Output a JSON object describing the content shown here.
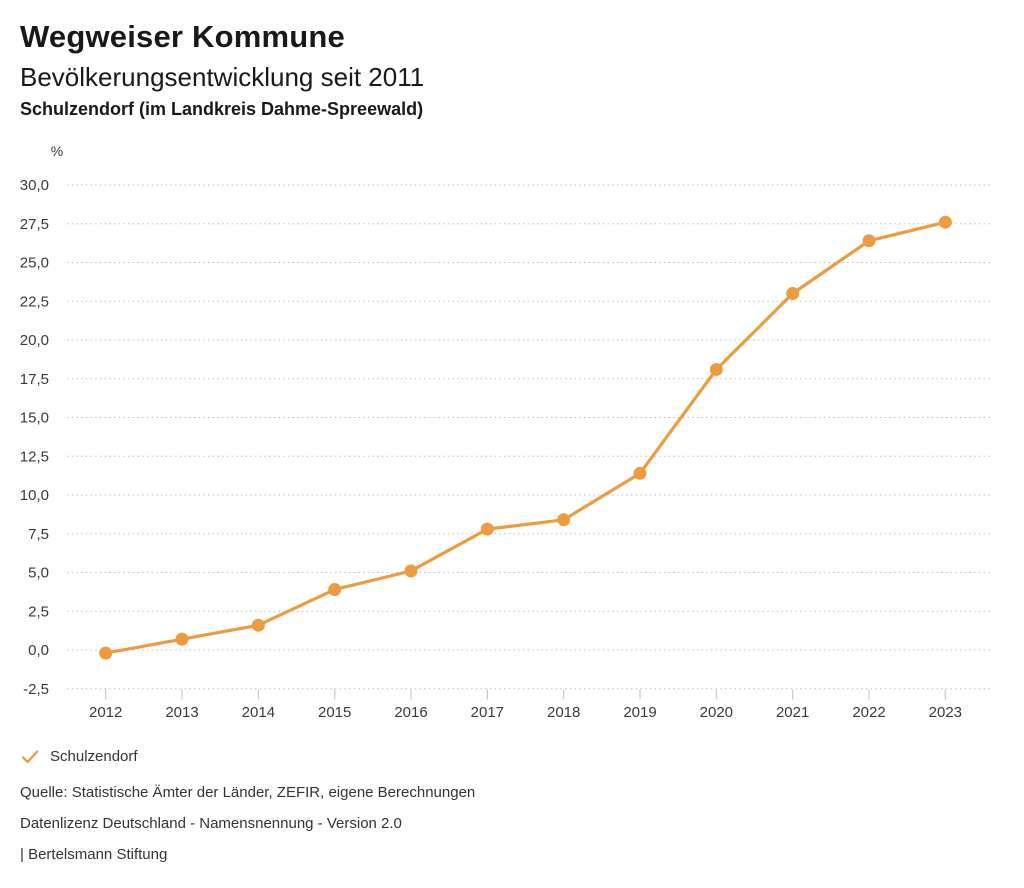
{
  "page": {
    "title": "Wegweiser Kommune",
    "subtitle": "Bevölkerungsentwicklung seit 2011",
    "region": "Schulzendorf (im Landkreis Dahme-Spreewald)"
  },
  "chart_data": {
    "type": "line",
    "title": "Bevölkerungsentwicklung seit 2011",
    "unit_label": "%",
    "categories": [
      "2012",
      "2013",
      "2014",
      "2015",
      "2016",
      "2017",
      "2018",
      "2019",
      "2020",
      "2021",
      "2022",
      "2023"
    ],
    "series": [
      {
        "name": "Schulzendorf",
        "color": "#ED9B40",
        "values": [
          -0.2,
          0.7,
          1.6,
          3.9,
          5.1,
          7.8,
          8.4,
          11.4,
          18.1,
          23.0,
          26.4,
          27.6
        ]
      }
    ],
    "ylim": [
      -2.5,
      30.0
    ],
    "y_tick_step": 2.5,
    "y_tick_labels": [
      "30,0",
      "27,5",
      "25,0",
      "22,5",
      "20,0",
      "17,5",
      "15,0",
      "12,5",
      "10,0",
      "7,5",
      "5,0",
      "2,5",
      "0,0",
      "-2,5"
    ],
    "grid": "horizontal-dotted",
    "legend_position": "bottom-left"
  },
  "legend": {
    "items": [
      {
        "label": "Schulzendorf",
        "marker": "check-icon",
        "color": "#ED9B40"
      }
    ]
  },
  "footer": {
    "source": "Quelle: Statistische Ämter der Länder, ZEFIR, eigene Berechnungen",
    "license": "Datenlizenz Deutschland - Namensnennung - Version 2.0",
    "brand": "| Bertelsmann Stiftung"
  },
  "colors": {
    "accent": "#ED9B40",
    "grid": "#bfbfbf",
    "text": "#333333"
  }
}
